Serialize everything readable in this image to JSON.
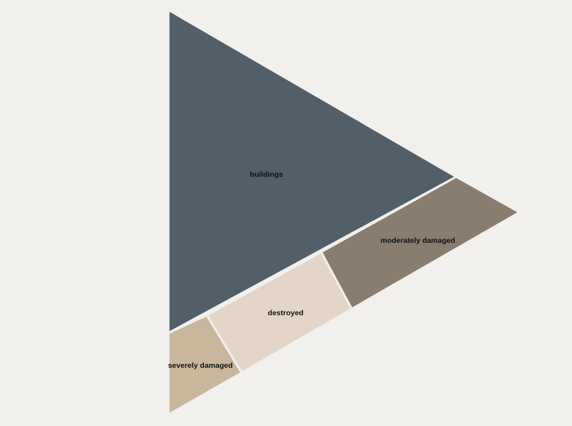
{
  "chart_data": {
    "type": "treemap",
    "shape": "triangle",
    "title": "",
    "series": [
      {
        "name": "buildings",
        "value": 60.0,
        "color": "#525f69"
      },
      {
        "name": "moderately damaged",
        "value": 16.0,
        "color": "#887d6e"
      },
      {
        "name": "destroyed",
        "value": 15.0,
        "color": "#e3d5c8"
      },
      {
        "name": "severely damaged",
        "value": 9.0,
        "color": "#c8b79c"
      }
    ],
    "background": "#f2f0ed"
  }
}
